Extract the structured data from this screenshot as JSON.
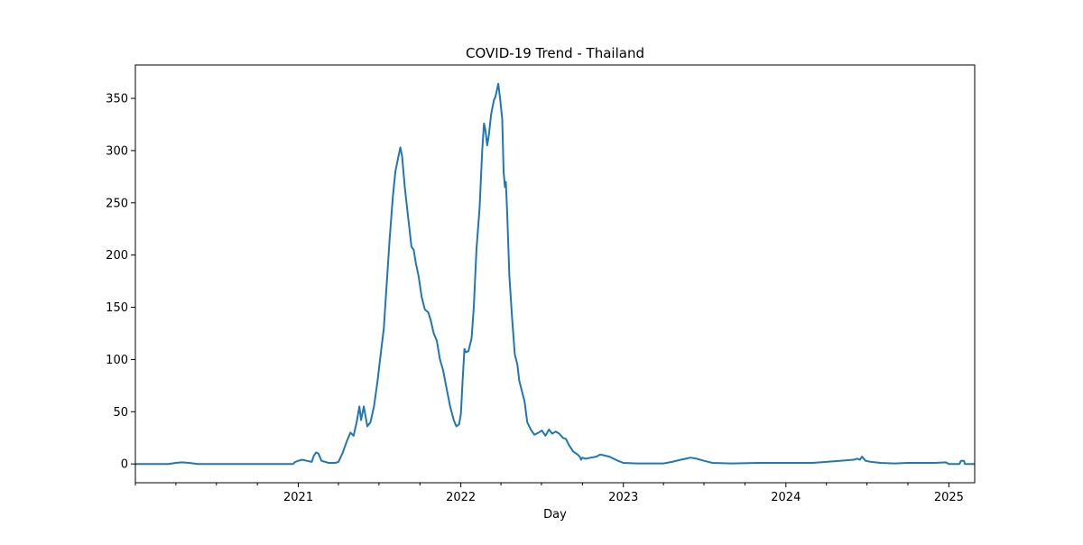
{
  "chart_data": {
    "type": "line",
    "title": "COVID-19 Trend - Thailand",
    "xlabel": "Day",
    "ylabel": "",
    "x_type": "date",
    "xlim": [
      "2020-01-01",
      "2025-02-28"
    ],
    "ylim": [
      -18,
      382
    ],
    "yticks": [
      0,
      50,
      100,
      150,
      200,
      250,
      300,
      350
    ],
    "xticks": [
      {
        "date": "2021-01-01",
        "label": "2021"
      },
      {
        "date": "2022-01-01",
        "label": "2022"
      },
      {
        "date": "2023-01-01",
        "label": "2023"
      },
      {
        "date": "2024-01-01",
        "label": "2024"
      },
      {
        "date": "2025-01-01",
        "label": "2025"
      }
    ],
    "minor_xticks": [
      "2020-01-01",
      "2020-04-01",
      "2020-07-01",
      "2020-10-01",
      "2021-04-01",
      "2021-07-01",
      "2021-10-01",
      "2022-04-01",
      "2022-07-01",
      "2022-10-01",
      "2023-04-01",
      "2023-07-01",
      "2023-10-01",
      "2024-04-01",
      "2024-07-01",
      "2024-10-01"
    ],
    "grid": false,
    "line_color": "#1f77b4",
    "series": [
      {
        "name": "",
        "points": [
          [
            "2020-01-01",
            0
          ],
          [
            "2020-03-15",
            0
          ],
          [
            "2020-04-01",
            1
          ],
          [
            "2020-04-15",
            1.5
          ],
          [
            "2020-05-01",
            1
          ],
          [
            "2020-05-20",
            0
          ],
          [
            "2020-12-20",
            0
          ],
          [
            "2020-12-25",
            2
          ],
          [
            "2021-01-01",
            3
          ],
          [
            "2021-01-10",
            4
          ],
          [
            "2021-01-20",
            3
          ],
          [
            "2021-01-31",
            2
          ],
          [
            "2021-02-05",
            8
          ],
          [
            "2021-02-10",
            11
          ],
          [
            "2021-02-15",
            10
          ],
          [
            "2021-02-22",
            3
          ],
          [
            "2021-03-10",
            1
          ],
          [
            "2021-03-25",
            1
          ],
          [
            "2021-04-01",
            2
          ],
          [
            "2021-04-10",
            10
          ],
          [
            "2021-04-20",
            22
          ],
          [
            "2021-04-28",
            30
          ],
          [
            "2021-05-05",
            27
          ],
          [
            "2021-05-12",
            40
          ],
          [
            "2021-05-18",
            55
          ],
          [
            "2021-05-22",
            42
          ],
          [
            "2021-05-28",
            55
          ],
          [
            "2021-06-05",
            36
          ],
          [
            "2021-06-12",
            40
          ],
          [
            "2021-06-20",
            55
          ],
          [
            "2021-06-28",
            80
          ],
          [
            "2021-07-05",
            105
          ],
          [
            "2021-07-12",
            130
          ],
          [
            "2021-07-18",
            170
          ],
          [
            "2021-07-25",
            215
          ],
          [
            "2021-08-01",
            255
          ],
          [
            "2021-08-07",
            280
          ],
          [
            "2021-08-14",
            295
          ],
          [
            "2021-08-18",
            303
          ],
          [
            "2021-08-22",
            295
          ],
          [
            "2021-08-28",
            265
          ],
          [
            "2021-09-05",
            235
          ],
          [
            "2021-09-12",
            208
          ],
          [
            "2021-09-17",
            205
          ],
          [
            "2021-09-22",
            192
          ],
          [
            "2021-09-28",
            180
          ],
          [
            "2021-10-05",
            160
          ],
          [
            "2021-10-12",
            148
          ],
          [
            "2021-10-20",
            145
          ],
          [
            "2021-10-25",
            138
          ],
          [
            "2021-11-01",
            125
          ],
          [
            "2021-11-08",
            118
          ],
          [
            "2021-11-15",
            100
          ],
          [
            "2021-11-22",
            90
          ],
          [
            "2021-11-30",
            72
          ],
          [
            "2021-12-08",
            55
          ],
          [
            "2021-12-16",
            42
          ],
          [
            "2021-12-22",
            36
          ],
          [
            "2021-12-28",
            38
          ],
          [
            "2022-01-01",
            48
          ],
          [
            "2022-01-05",
            80
          ],
          [
            "2022-01-09",
            110
          ],
          [
            "2022-01-12",
            107
          ],
          [
            "2022-01-18",
            108
          ],
          [
            "2022-01-25",
            120
          ],
          [
            "2022-01-30",
            150
          ],
          [
            "2022-02-05",
            205
          ],
          [
            "2022-02-12",
            245
          ],
          [
            "2022-02-18",
            300
          ],
          [
            "2022-02-22",
            326
          ],
          [
            "2022-02-25",
            320
          ],
          [
            "2022-03-01",
            305
          ],
          [
            "2022-03-05",
            315
          ],
          [
            "2022-03-10",
            335
          ],
          [
            "2022-03-16",
            348
          ],
          [
            "2022-03-20",
            352
          ],
          [
            "2022-03-26",
            364
          ],
          [
            "2022-03-30",
            350
          ],
          [
            "2022-04-04",
            330
          ],
          [
            "2022-04-07",
            280
          ],
          [
            "2022-04-10",
            265
          ],
          [
            "2022-04-12",
            270
          ],
          [
            "2022-04-15",
            240
          ],
          [
            "2022-04-20",
            180
          ],
          [
            "2022-04-26",
            140
          ],
          [
            "2022-05-02",
            105
          ],
          [
            "2022-05-08",
            95
          ],
          [
            "2022-05-12",
            80
          ],
          [
            "2022-05-18",
            70
          ],
          [
            "2022-05-24",
            60
          ],
          [
            "2022-05-30",
            40
          ],
          [
            "2022-06-07",
            33
          ],
          [
            "2022-06-15",
            28
          ],
          [
            "2022-06-25",
            30
          ],
          [
            "2022-07-02",
            32
          ],
          [
            "2022-07-10",
            27
          ],
          [
            "2022-07-18",
            33
          ],
          [
            "2022-07-25",
            29
          ],
          [
            "2022-08-02",
            31
          ],
          [
            "2022-08-10",
            29
          ],
          [
            "2022-08-18",
            25
          ],
          [
            "2022-08-25",
            24
          ],
          [
            "2022-09-01",
            18
          ],
          [
            "2022-09-10",
            12
          ],
          [
            "2022-09-20",
            9
          ],
          [
            "2022-09-25",
            7
          ],
          [
            "2022-09-28",
            4
          ],
          [
            "2022-10-01",
            6
          ],
          [
            "2022-10-08",
            5
          ],
          [
            "2022-10-20",
            6
          ],
          [
            "2022-11-01",
            7
          ],
          [
            "2022-11-10",
            9
          ],
          [
            "2022-11-20",
            8
          ],
          [
            "2022-12-01",
            7
          ],
          [
            "2022-12-10",
            5
          ],
          [
            "2022-12-20",
            3
          ],
          [
            "2023-01-01",
            1
          ],
          [
            "2023-02-01",
            0.5
          ],
          [
            "2023-04-01",
            0.5
          ],
          [
            "2023-04-20",
            2
          ],
          [
            "2023-05-10",
            4
          ],
          [
            "2023-06-01",
            6
          ],
          [
            "2023-06-15",
            5
          ],
          [
            "2023-07-01",
            3
          ],
          [
            "2023-07-20",
            1
          ],
          [
            "2023-09-01",
            0.5
          ],
          [
            "2023-11-01",
            1
          ],
          [
            "2024-01-01",
            1
          ],
          [
            "2024-03-01",
            1
          ],
          [
            "2024-04-01",
            2
          ],
          [
            "2024-05-01",
            3
          ],
          [
            "2024-06-01",
            4
          ],
          [
            "2024-06-10",
            5
          ],
          [
            "2024-06-15",
            4
          ],
          [
            "2024-06-20",
            7
          ],
          [
            "2024-06-28",
            3
          ],
          [
            "2024-07-10",
            2
          ],
          [
            "2024-08-01",
            1
          ],
          [
            "2024-09-01",
            0.5
          ],
          [
            "2024-10-01",
            1
          ],
          [
            "2024-12-01",
            1
          ],
          [
            "2024-12-25",
            1.5
          ],
          [
            "2025-01-01",
            0
          ],
          [
            "2025-01-25",
            0
          ],
          [
            "2025-01-28",
            3
          ],
          [
            "2025-02-04",
            3
          ],
          [
            "2025-02-06",
            0
          ],
          [
            "2025-02-28",
            0
          ]
        ]
      }
    ]
  }
}
